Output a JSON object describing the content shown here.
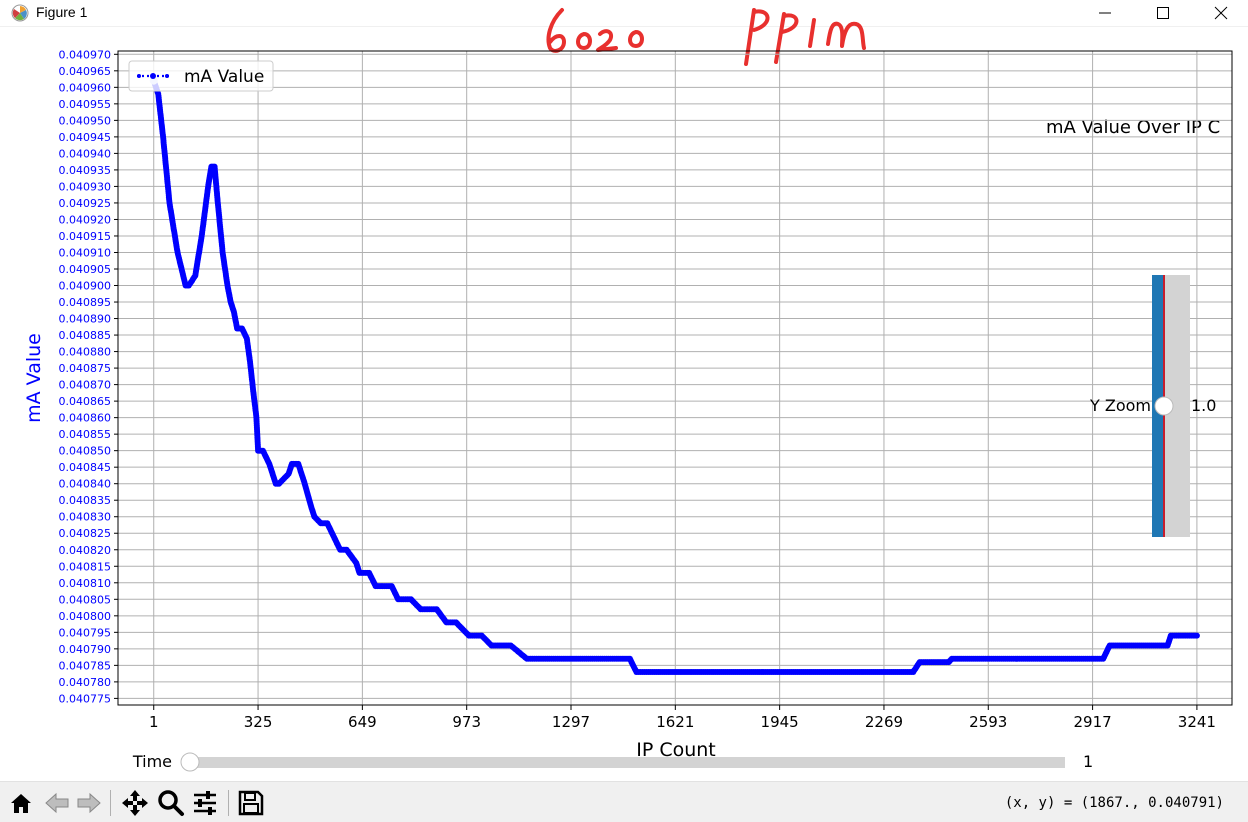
{
  "window": {
    "title": "Figure 1",
    "minimize_icon": "minimize-icon",
    "maximize_icon": "maximize-icon",
    "close_icon": "close-icon"
  },
  "annotation": {
    "handwritten_text": "6020 PPM",
    "color": "#e8302e"
  },
  "chart_data": {
    "type": "line",
    "title": "mA Value Over IP C",
    "xlabel": "IP Count",
    "ylabel": "mA Value",
    "ylabel_color": "#0000ff",
    "line_color": "#0000ff",
    "marker": "point",
    "linestyle": "dotted",
    "grid": true,
    "legend": {
      "entries": [
        "mA Value"
      ],
      "placement": "upper-left"
    },
    "xlim": [
      -110,
      3350
    ],
    "ylim": [
      0.040773,
      0.040971
    ],
    "xticks": [
      1,
      325,
      649,
      973,
      1297,
      1621,
      1945,
      2269,
      2593,
      2917,
      3241
    ],
    "xtick_labels": [
      "1",
      "325",
      "649",
      "973",
      "1297",
      "1621",
      "1945",
      "2269",
      "2593",
      "2917",
      "3241"
    ],
    "ytick_labels": [
      "0.040775",
      "0.040780",
      "0.040785",
      "0.040790",
      "0.040795",
      "0.040800",
      "0.040805",
      "0.040810",
      "0.040815",
      "0.040820",
      "0.040825",
      "0.040830",
      "0.040835",
      "0.040840",
      "0.040845",
      "0.040850",
      "0.040855",
      "0.040860",
      "0.040865",
      "0.040870",
      "0.040875",
      "0.040880",
      "0.040885",
      "0.040890",
      "0.040895",
      "0.040900",
      "0.040905",
      "0.040910",
      "0.040915",
      "0.040920",
      "0.040925",
      "0.040930",
      "0.040935",
      "0.040940",
      "0.040945",
      "0.040950",
      "0.040955",
      "0.040960",
      "0.040965",
      "0.040970"
    ],
    "ytick_color": "#0000ff",
    "series": [
      {
        "name": "mA Value",
        "x": [
          1,
          15,
          30,
          50,
          75,
          100,
          110,
          130,
          150,
          170,
          180,
          190,
          200,
          215,
          230,
          240,
          250,
          260,
          275,
          290,
          300,
          310,
          320,
          325,
          340,
          360,
          380,
          390,
          420,
          430,
          450,
          470,
          490,
          500,
          520,
          540,
          560,
          580,
          600,
          630,
          640,
          670,
          690,
          740,
          760,
          800,
          830,
          880,
          910,
          940,
          980,
          1020,
          1050,
          1110,
          1160,
          1230,
          1480,
          1500,
          1740,
          2360,
          2380,
          2470,
          2480,
          2950,
          2970,
          3150,
          3160,
          3241
        ],
        "y": [
          0.040962,
          0.040958,
          0.040945,
          0.040925,
          0.04091,
          0.0409,
          0.0409,
          0.040903,
          0.040915,
          0.04093,
          0.040936,
          0.040936,
          0.040925,
          0.04091,
          0.0409,
          0.040895,
          0.040892,
          0.040887,
          0.040887,
          0.040884,
          0.040877,
          0.040868,
          0.04086,
          0.04085,
          0.04085,
          0.040846,
          0.04084,
          0.04084,
          0.040843,
          0.040846,
          0.040846,
          0.04084,
          0.040833,
          0.04083,
          0.040828,
          0.040828,
          0.040824,
          0.04082,
          0.04082,
          0.040816,
          0.040813,
          0.040813,
          0.040809,
          0.040809,
          0.040805,
          0.040805,
          0.040802,
          0.040802,
          0.040798,
          0.040798,
          0.040794,
          0.040794,
          0.040791,
          0.040791,
          0.040787,
          0.040787,
          0.040787,
          0.040783,
          0.040783,
          0.040783,
          0.040786,
          0.040786,
          0.040787,
          0.040787,
          0.040791,
          0.040791,
          0.040794,
          0.040794
        ]
      }
    ]
  },
  "zoom_slider": {
    "label": "Y Zoom",
    "value_text": "1.0",
    "fill_fraction": 0.5,
    "fill_color": "#1f77b4",
    "track_color": "#d3d3d3",
    "marker_color": "#ff0000"
  },
  "time_slider": {
    "label": "Time",
    "value_text": "1",
    "fill_fraction": 0.0,
    "track_color": "#d3d3d3"
  },
  "toolbar": {
    "buttons": [
      {
        "name": "home-button",
        "icon": "home-icon"
      },
      {
        "name": "back-button",
        "icon": "back-arrow-icon"
      },
      {
        "name": "forward-button",
        "icon": "forward-arrow-icon"
      },
      {
        "name": "pan-button",
        "icon": "pan-move-icon"
      },
      {
        "name": "zoom-button",
        "icon": "magnifier-icon"
      },
      {
        "name": "configure-subplots-button",
        "icon": "sliders-icon"
      },
      {
        "name": "save-button",
        "icon": "floppy-disk-icon"
      }
    ],
    "coordinate_readout": "(x, y) = (1867., 0.040791)"
  }
}
